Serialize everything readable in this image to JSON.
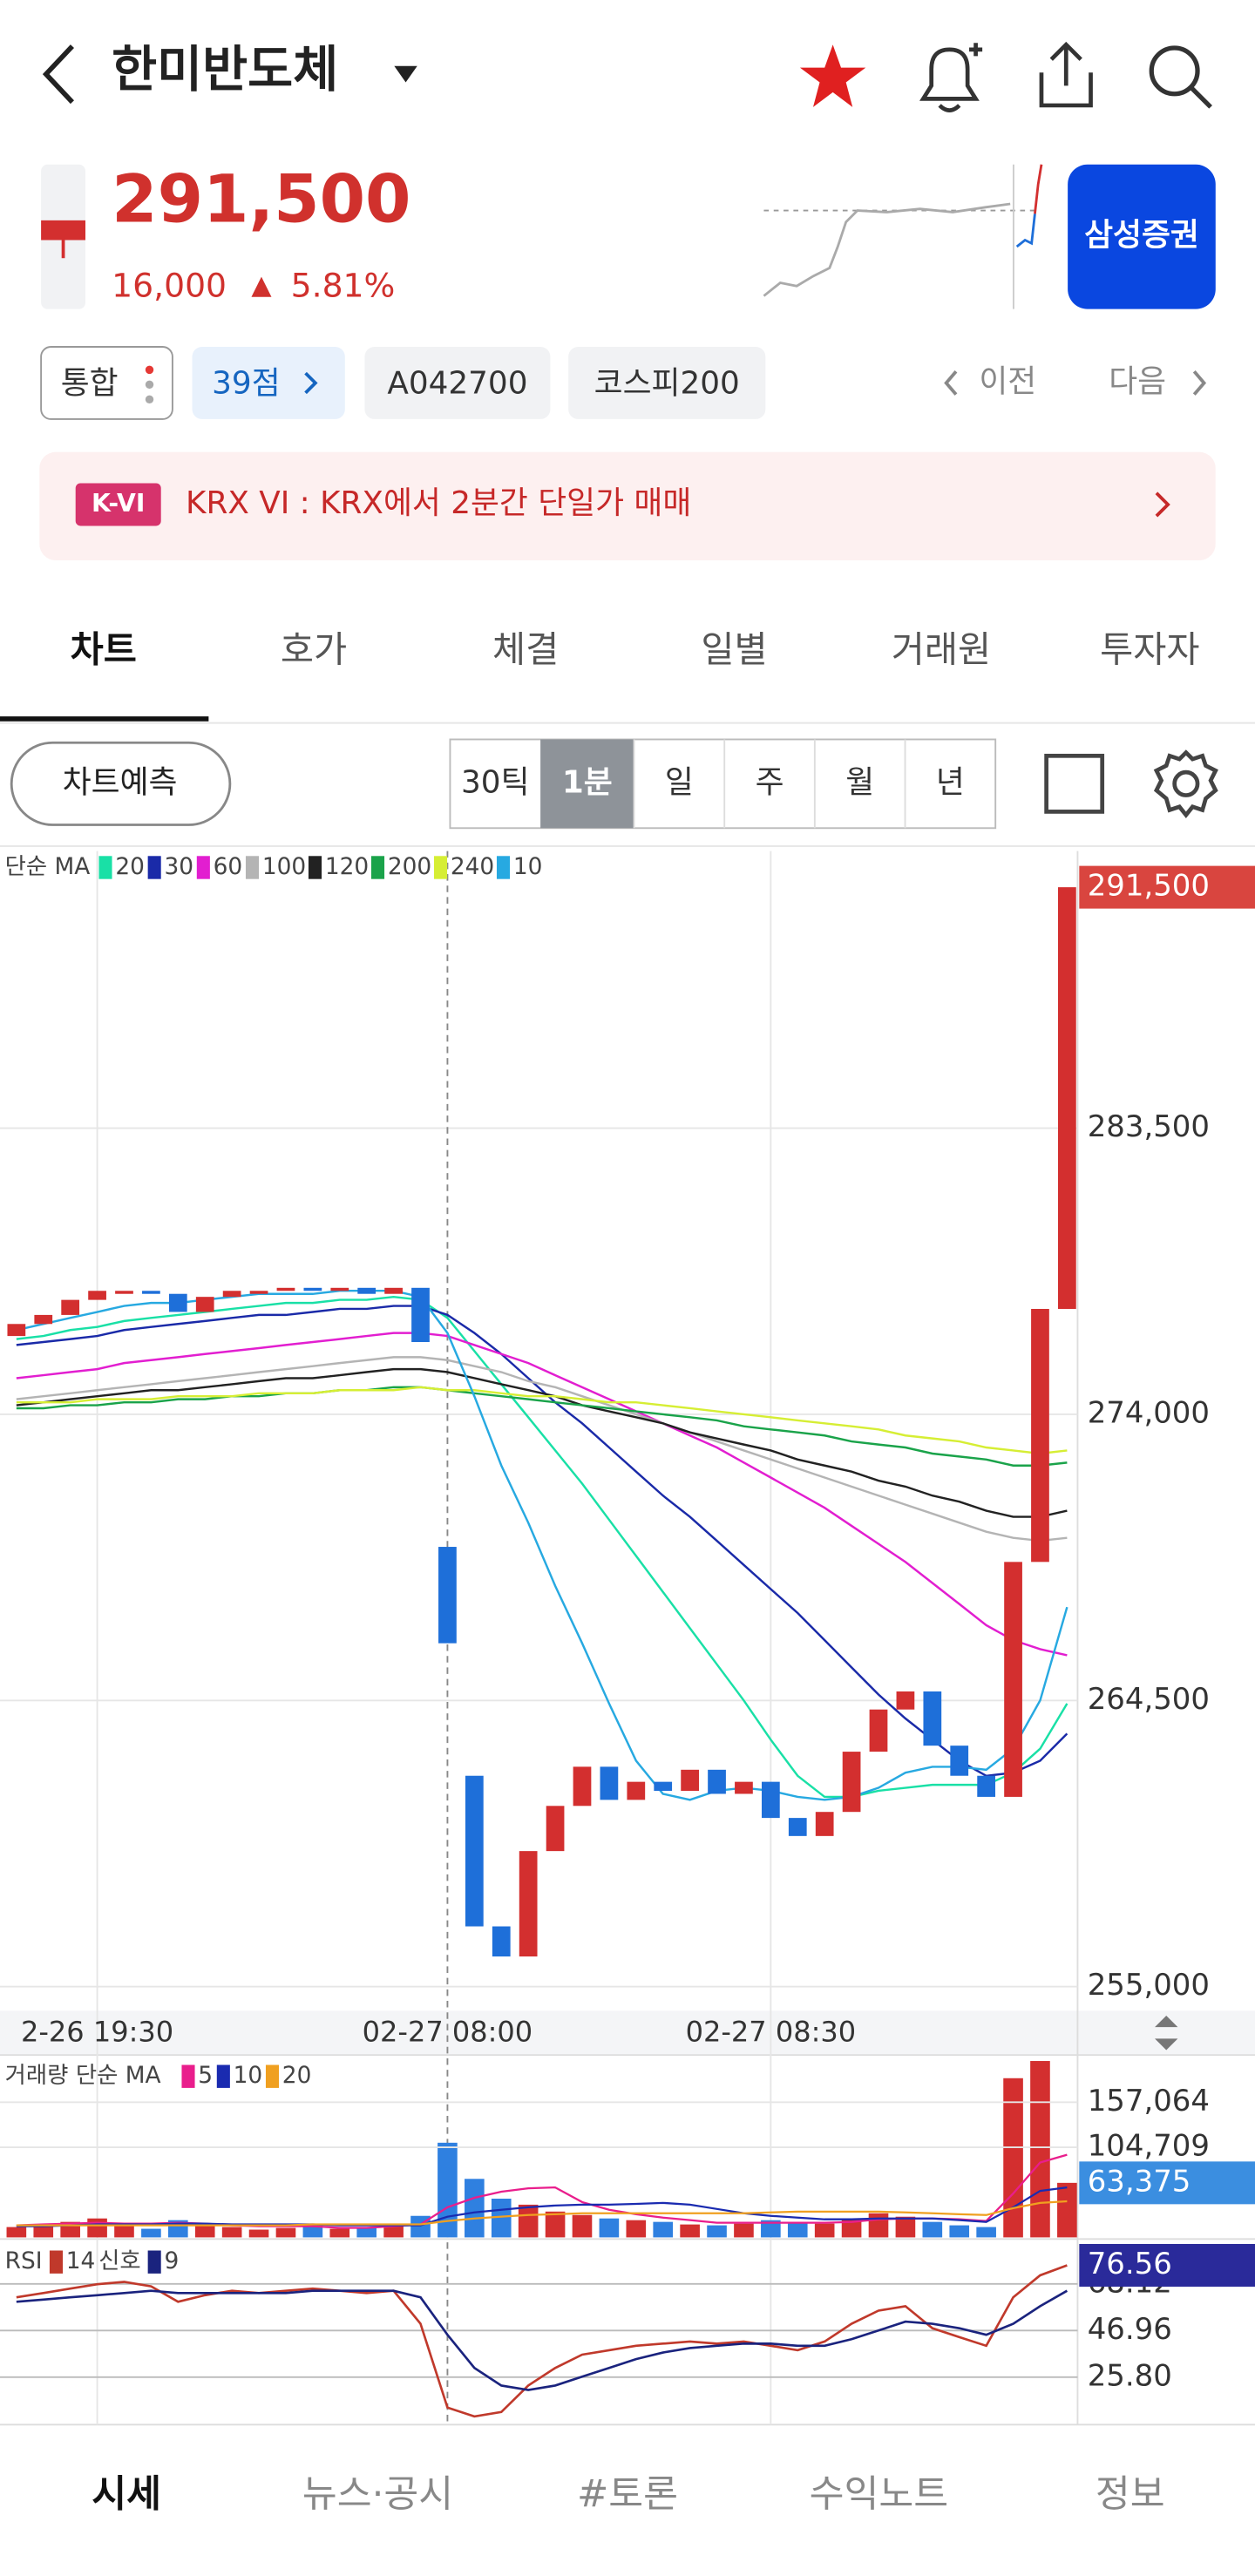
{
  "header": {
    "title": "한미반도체"
  },
  "quote": {
    "price": "291,500",
    "change": "16,000",
    "direction": "▲",
    "change_rate": "5.81%",
    "broker_button": "삼성증권"
  },
  "tags": {
    "items": [
      "통합",
      "39점",
      "A042700",
      "코스피200"
    ],
    "prev": "이전",
    "next": "다음"
  },
  "banner": {
    "badge": "K-VI",
    "text": "KRX VI : KRX에서 2분간 단일가 매매"
  },
  "tabs": {
    "items": [
      "차트",
      "호가",
      "체결",
      "일별",
      "거래원",
      "투자자"
    ],
    "active": 0
  },
  "toolbar": {
    "predict": "차트예측",
    "periods": [
      "30틱",
      "1분",
      "일",
      "주",
      "월",
      "년"
    ],
    "active_period": 1
  },
  "chart_data": [
    {
      "type": "candlestick",
      "legend_title": "단순 MA",
      "x": [
        null,
        null,
        null,
        "2-26 19:30",
        null,
        null,
        null,
        null,
        null,
        null,
        null,
        null,
        null,
        null,
        null,
        null,
        "02-27 08:00",
        null,
        null,
        null,
        null,
        null,
        null,
        null,
        null,
        null,
        null,
        null,
        "02-27 08:30",
        null,
        null,
        null,
        null,
        null,
        null,
        null,
        null,
        null,
        null,
        null
      ],
      "open": [
        276600,
        277000,
        277300,
        277800,
        278000,
        278100,
        278000,
        277400,
        277900,
        278000,
        278100,
        278200,
        278100,
        278200,
        278000,
        278200,
        269600,
        262000,
        257000,
        256000,
        259500,
        261000,
        262300,
        261200,
        261800,
        261500,
        262200,
        261400,
        261800,
        260600,
        260000,
        260800,
        262800,
        264200,
        264800,
        263000,
        262000,
        261300,
        269100,
        277500
      ],
      "close": [
        277000,
        277300,
        277800,
        278100,
        278100,
        278000,
        277400,
        277900,
        278100,
        278100,
        278200,
        278100,
        278200,
        278000,
        278200,
        276400,
        266400,
        257000,
        256000,
        259500,
        261000,
        262300,
        261200,
        261800,
        261500,
        262200,
        261400,
        261800,
        260600,
        260000,
        260800,
        262800,
        264200,
        264800,
        263000,
        262000,
        261300,
        269100,
        277500,
        291500
      ],
      "up_color": "#d32f2f",
      "down_color": "#1e6fd9",
      "moving_averages": [
        {
          "name": "20",
          "color": "#19e0a6",
          "values": [
            276500,
            276600,
            276800,
            276900,
            277100,
            277200,
            277300,
            277400,
            277500,
            277600,
            277700,
            277700,
            277800,
            277800,
            277900,
            277800,
            277200,
            276100,
            275000,
            273900,
            272800,
            271700,
            270500,
            269300,
            268100,
            266900,
            265700,
            264500,
            263200,
            262000,
            261300,
            261300,
            261500,
            261600,
            261700,
            261700,
            261700,
            262100,
            262900,
            264400
          ]
        },
        {
          "name": "30",
          "color": "#1a2aa8",
          "values": [
            276300,
            276400,
            276500,
            276600,
            276800,
            276900,
            277000,
            277100,
            277200,
            277300,
            277300,
            277400,
            277500,
            277500,
            277600,
            277600,
            277300,
            276700,
            276000,
            275200,
            274400,
            273700,
            272900,
            272100,
            271300,
            270600,
            269800,
            269000,
            268200,
            267400,
            266500,
            265600,
            264700,
            263900,
            263200,
            262500,
            262000,
            262100,
            262500,
            263400
          ]
        },
        {
          "name": "60",
          "color": "#e21ed0",
          "values": [
            275200,
            275300,
            275400,
            275500,
            275700,
            275800,
            275900,
            276000,
            276100,
            276200,
            276300,
            276400,
            276500,
            276600,
            276700,
            276700,
            276600,
            276300,
            276000,
            275700,
            275300,
            274900,
            274500,
            274100,
            273700,
            273300,
            272900,
            272400,
            271900,
            271400,
            270900,
            270300,
            269700,
            269100,
            268400,
            267700,
            267000,
            266500,
            266200,
            266000
          ]
        },
        {
          "name": "100",
          "color": "#b4b4b4",
          "values": [
            274500,
            274600,
            274700,
            274800,
            274900,
            275000,
            275100,
            275200,
            275300,
            275400,
            275500,
            275600,
            275700,
            275800,
            275900,
            275900,
            275800,
            275600,
            275400,
            275100,
            274900,
            274600,
            274300,
            274000,
            273700,
            273400,
            273100,
            272800,
            272500,
            272200,
            271900,
            271600,
            271300,
            271000,
            270700,
            270400,
            270100,
            269900,
            269800,
            269900
          ]
        },
        {
          "name": "120",
          "color": "#222222",
          "values": [
            274300,
            274400,
            274500,
            274600,
            274700,
            274800,
            274800,
            274900,
            275000,
            275100,
            275200,
            275200,
            275300,
            275400,
            275500,
            275500,
            275400,
            275200,
            275000,
            274800,
            274600,
            274300,
            274100,
            273900,
            273700,
            273400,
            273200,
            273000,
            272800,
            272500,
            272300,
            272100,
            271800,
            271600,
            271300,
            271100,
            270800,
            270600,
            270600,
            270800
          ]
        },
        {
          "name": "200",
          "color": "#1aa34a",
          "values": [
            274200,
            274200,
            274300,
            274300,
            274400,
            274400,
            274500,
            274500,
            274600,
            274600,
            274700,
            274700,
            274800,
            274800,
            274900,
            274900,
            274800,
            274700,
            274600,
            274500,
            274400,
            274300,
            274200,
            274100,
            274000,
            273900,
            273800,
            273600,
            273500,
            273400,
            273300,
            273100,
            273000,
            272900,
            272700,
            272600,
            272500,
            272300,
            272300,
            272400
          ]
        },
        {
          "name": "240",
          "color": "#d6ee34",
          "values": [
            274400,
            274400,
            274400,
            274500,
            274500,
            274500,
            274600,
            274600,
            274600,
            274700,
            274700,
            274700,
            274800,
            274800,
            274800,
            274900,
            274800,
            274800,
            274700,
            274600,
            274600,
            274500,
            274400,
            274400,
            274300,
            274200,
            274100,
            274000,
            273900,
            273800,
            273700,
            273600,
            273500,
            273300,
            273200,
            273100,
            272900,
            272800,
            272700,
            272800
          ]
        },
        {
          "name": "10",
          "color": "#27a9e1",
          "values": [
            276800,
            277000,
            277200,
            277400,
            277600,
            277700,
            277700,
            277800,
            277900,
            278000,
            278000,
            278000,
            278100,
            278100,
            278100,
            277900,
            276700,
            274600,
            272300,
            270400,
            268300,
            266400,
            264400,
            262500,
            261400,
            261200,
            261500,
            261600,
            261500,
            261300,
            261200,
            261300,
            261600,
            262100,
            262300,
            262300,
            262200,
            262900,
            264500,
            267600
          ]
        }
      ],
      "ylim": [
        254200,
        292700
      ],
      "yticks": [
        {
          "value": 255000,
          "label": "255,000"
        },
        {
          "value": 264500,
          "label": "264,500"
        },
        {
          "value": 274000,
          "label": "274,000"
        },
        {
          "value": 283500,
          "label": "283,500"
        }
      ],
      "current": {
        "value": 291500,
        "label": "291,500"
      },
      "current_color": "#d9453f",
      "grid": true
    },
    {
      "type": "bar",
      "legend_title": "거래량 단순 MA",
      "values": [
        12000,
        15000,
        18000,
        22000,
        14000,
        10000,
        20000,
        16000,
        12000,
        9000,
        11000,
        14000,
        10000,
        12000,
        16000,
        25000,
        110000,
        68000,
        45000,
        38000,
        30000,
        26000,
        22000,
        20000,
        18000,
        15000,
        14000,
        16000,
        20000,
        18000,
        16000,
        22000,
        28000,
        24000,
        18000,
        14000,
        12000,
        185000,
        205000,
        63375
      ],
      "up_color": "#d32f2f",
      "down_color": "#2f80e0",
      "moving_averages": [
        {
          "name": "5",
          "color": "#e91e8c",
          "values": [
            14000,
            15000,
            16000,
            17000,
            16000,
            16000,
            17000,
            16000,
            14000,
            13000,
            13000,
            13000,
            11000,
            11000,
            13000,
            15000,
            35000,
            46000,
            53000,
            57000,
            58000,
            41000,
            32000,
            27000,
            23000,
            20000,
            17000,
            17000,
            17000,
            17000,
            17000,
            18000,
            21000,
            22000,
            22000,
            21000,
            19000,
            51000,
            87000,
            96000
          ]
        },
        {
          "name": "10",
          "color": "#1a2bb0",
          "values": [
            13000,
            13000,
            14000,
            15000,
            15000,
            15000,
            16000,
            16000,
            15000,
            15000,
            15000,
            15000,
            14000,
            14000,
            14000,
            14000,
            24000,
            29000,
            32000,
            35000,
            37000,
            38000,
            38000,
            39000,
            40000,
            38000,
            33000,
            28000,
            25000,
            23000,
            21000,
            21000,
            22000,
            22000,
            22000,
            20000,
            18000,
            35000,
            54000,
            58000
          ]
        },
        {
          "name": "20",
          "color": "#f0a020",
          "values": [
            14000,
            14000,
            14000,
            14000,
            14000,
            14000,
            14000,
            14000,
            14000,
            14000,
            14000,
            15000,
            15000,
            15000,
            15000,
            15000,
            19000,
            22000,
            24000,
            26000,
            27000,
            28000,
            28000,
            28000,
            28000,
            28000,
            28000,
            28000,
            29000,
            30000,
            30000,
            30000,
            30000,
            29000,
            28000,
            27000,
            26000,
            34000,
            40000,
            42000
          ]
        }
      ],
      "ylim": [
        0,
        210000
      ],
      "yticks": [
        {
          "value": 104709,
          "label": "104,709"
        },
        {
          "value": 157064,
          "label": "157,064"
        }
      ],
      "current": {
        "value": 63375,
        "label": "63,375"
      },
      "current_color": "#3b8ee0"
    },
    {
      "type": "line",
      "series": [
        {
          "name": "RSI",
          "period": 14,
          "color": "#c0392b",
          "values": [
            62,
            64,
            66,
            68,
            69,
            67,
            60,
            63,
            65,
            64,
            65,
            66,
            65,
            64,
            65,
            50,
            12,
            8,
            10,
            22,
            30,
            36,
            38,
            40,
            41,
            42,
            41,
            42,
            40,
            38,
            42,
            50,
            56,
            58,
            48,
            44,
            40,
            62,
            72,
            76.56
          ]
        },
        {
          "name": "신호",
          "period": 9,
          "color": "#1a237e",
          "values": [
            60,
            61,
            62,
            63,
            64,
            65,
            64,
            64,
            64,
            64,
            64,
            65,
            65,
            65,
            65,
            62,
            45,
            30,
            22,
            20,
            22,
            26,
            30,
            34,
            37,
            39,
            40,
            41,
            41,
            40,
            40,
            43,
            47,
            51,
            50,
            48,
            45,
            50,
            58,
            65
          ]
        }
      ],
      "ylim": [
        5,
        87
      ],
      "yticks": [
        {
          "value": 25.8,
          "label": "25.80"
        },
        46.96,
        68.12
      ],
      "current": 76.56,
      "current_color": "#2a2a9a"
    }
  ],
  "bottom_nav": {
    "items": [
      "시세",
      "뉴스·공시",
      "#토론",
      "수익노트",
      "정보"
    ],
    "active": 0
  }
}
